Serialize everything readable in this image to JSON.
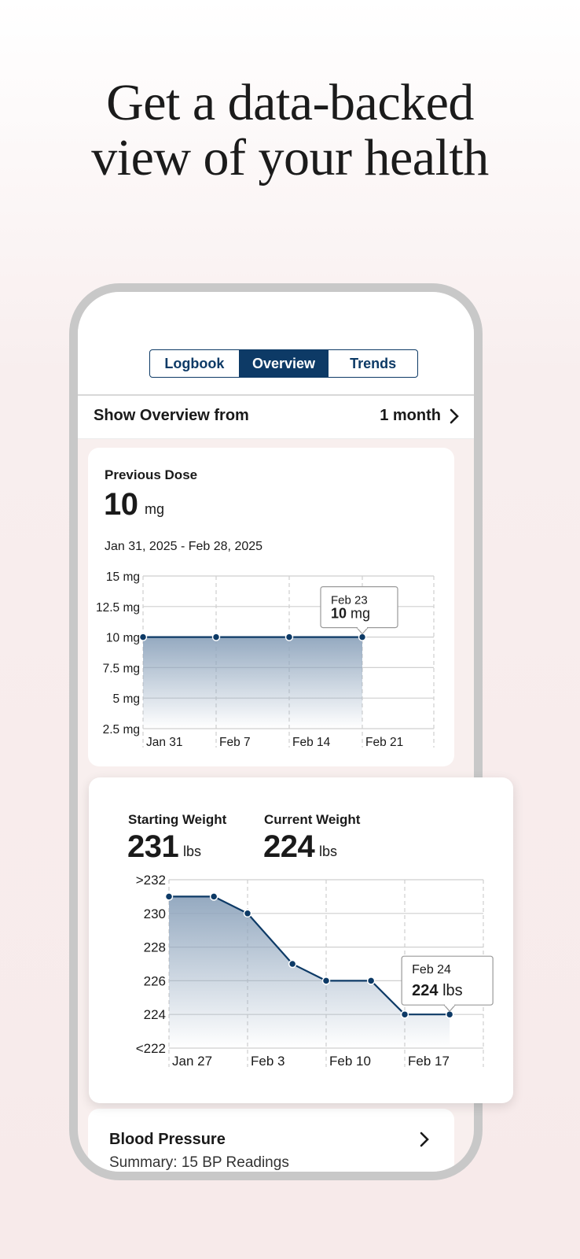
{
  "headline": {
    "line1": "Get a data-backed",
    "line2": "view of your health"
  },
  "tabs": [
    {
      "label": "Logbook",
      "active": false
    },
    {
      "label": "Overview",
      "active": true
    },
    {
      "label": "Trends",
      "active": false
    }
  ],
  "range": {
    "label": "Show Overview from",
    "value": "1 month"
  },
  "dose": {
    "label": "Previous Dose",
    "value": "10",
    "unit": "mg",
    "date_range": "Jan 31, 2025 - Feb 28, 2025",
    "tooltip": {
      "date": "Feb 23",
      "value": "10",
      "unit": "mg"
    }
  },
  "weight": {
    "starting_label": "Starting Weight",
    "starting_value": "231",
    "current_label": "Current Weight",
    "current_value": "224",
    "unit": "lbs",
    "tooltip": {
      "date": "Feb 24",
      "value": "224",
      "unit": "lbs"
    }
  },
  "blood_pressure": {
    "title": "Blood Pressure",
    "summary": "Summary: 15 BP Readings"
  },
  "colors": {
    "navy": "#0d3a66",
    "grid": "#cfcfcf"
  },
  "chart_data": [
    {
      "type": "area",
      "title": "Previous Dose",
      "y_tick_labels": [
        "15 mg",
        "12.5 mg",
        "10 mg",
        "7.5 mg",
        "5 mg",
        "2.5 mg"
      ],
      "x_tick_labels": [
        "Jan 31",
        "Feb 7",
        "Feb 14",
        "Feb 21"
      ],
      "ylim": [
        2.5,
        15
      ],
      "series": [
        {
          "x": [
            "Jan 31",
            "Feb 7",
            "Feb 14",
            "Feb 21"
          ],
          "values": [
            10,
            10,
            10,
            10
          ]
        }
      ]
    },
    {
      "type": "area",
      "title": "Weight",
      "y_tick_labels": [
        ">232",
        "230",
        "228",
        "226",
        "224",
        "<222"
      ],
      "x_tick_labels": [
        "Jan 27",
        "Feb 3",
        "Feb 10",
        "Feb 17"
      ],
      "ylim": [
        222,
        232
      ],
      "series": [
        {
          "x": [
            "Jan 27",
            "Jan 31",
            "Feb 3",
            "Feb 7",
            "Feb 10",
            "Feb 14",
            "Feb 17",
            "Feb 21"
          ],
          "values": [
            231,
            231,
            230,
            227,
            226,
            226,
            224,
            224
          ]
        }
      ]
    }
  ]
}
